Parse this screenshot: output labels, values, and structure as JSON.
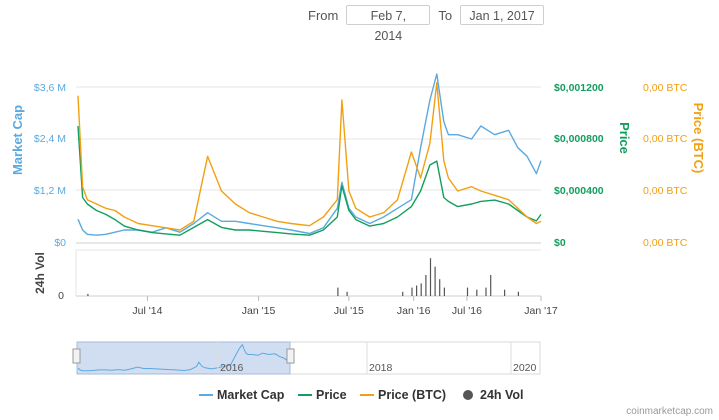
{
  "range": {
    "from_label": "From",
    "from_value": "Feb 7, 2014",
    "to_label": "To",
    "to_value": "Jan 1, 2017"
  },
  "credit": "coinmarketcap.com",
  "colors": {
    "market_cap": "#5aa9e0",
    "price": "#129e5e",
    "price_btc": "#f2a013",
    "vol": "#555555",
    "navigator_fill": "#c9d7ee"
  },
  "chart_data": {
    "type": "line",
    "x_ticks": [
      "Jul '14",
      "Jan '15",
      "Jul '15",
      "Jan '16",
      "Jul '16",
      "Jan '17"
    ],
    "y_axes": {
      "market_cap": {
        "label": "Market Cap",
        "ticks": [
          "$0",
          "$1,2 M",
          "$2,4 M",
          "$3,6 M"
        ],
        "range": [
          0,
          3.6
        ]
      },
      "price": {
        "label": "Price",
        "ticks": [
          "$0",
          "$0,000400",
          "$0,000800",
          "$0,001200"
        ],
        "range": [
          0,
          0.0012
        ]
      },
      "price_btc": {
        "label": "Price (BTC)",
        "ticks": [
          "0,00 BTC",
          "0,00 BTC",
          "0,00 BTC",
          "0,00 BTC"
        ]
      },
      "vol": {
        "label": "24h Vol",
        "ticks": [
          "0"
        ]
      }
    },
    "series": [
      {
        "name": "Market Cap",
        "x": [
          0,
          0.01,
          0.02,
          0.04,
          0.06,
          0.08,
          0.1,
          0.13,
          0.16,
          0.19,
          0.22,
          0.25,
          0.28,
          0.31,
          0.34,
          0.37,
          0.4,
          0.43,
          0.46,
          0.5,
          0.53,
          0.56,
          0.57,
          0.585,
          0.6,
          0.63,
          0.66,
          0.69,
          0.72,
          0.74,
          0.76,
          0.775,
          0.79,
          0.8,
          0.82,
          0.85,
          0.87,
          0.9,
          0.93,
          0.95,
          0.97,
          0.99,
          1.0
        ],
        "values": [
          0.55,
          0.3,
          0.2,
          0.18,
          0.2,
          0.25,
          0.3,
          0.3,
          0.25,
          0.35,
          0.25,
          0.45,
          0.7,
          0.5,
          0.5,
          0.45,
          0.4,
          0.35,
          0.3,
          0.22,
          0.35,
          0.8,
          1.4,
          0.8,
          0.6,
          0.45,
          0.6,
          0.8,
          1.0,
          2.2,
          3.3,
          3.9,
          2.8,
          2.5,
          2.5,
          2.4,
          2.7,
          2.5,
          2.6,
          2.2,
          2.0,
          1.6,
          1.9
        ]
      },
      {
        "name": "Price",
        "x": [
          0,
          0.01,
          0.02,
          0.04,
          0.06,
          0.08,
          0.1,
          0.13,
          0.16,
          0.19,
          0.22,
          0.25,
          0.28,
          0.31,
          0.34,
          0.37,
          0.4,
          0.43,
          0.46,
          0.5,
          0.53,
          0.56,
          0.57,
          0.585,
          0.6,
          0.63,
          0.66,
          0.69,
          0.72,
          0.74,
          0.76,
          0.775,
          0.79,
          0.8,
          0.82,
          0.85,
          0.87,
          0.9,
          0.93,
          0.95,
          0.97,
          0.99,
          1.0
        ],
        "values": [
          0.0009,
          0.00035,
          0.0003,
          0.00025,
          0.00022,
          0.00018,
          0.00013,
          0.0001,
          8e-05,
          7e-05,
          6e-05,
          0.00012,
          0.00018,
          0.00012,
          0.0001,
          0.0001,
          9e-05,
          8e-05,
          7e-05,
          6e-05,
          0.0001,
          0.0002,
          0.00044,
          0.00025,
          0.00018,
          0.00013,
          0.00015,
          0.0002,
          0.00028,
          0.0004,
          0.0006,
          0.00063,
          0.00035,
          0.00032,
          0.00028,
          0.0003,
          0.00032,
          0.00033,
          0.0003,
          0.00025,
          0.0002,
          0.00017,
          0.00022
        ]
      },
      {
        "name": "Price (BTC)",
        "x": [
          0,
          0.01,
          0.02,
          0.04,
          0.06,
          0.08,
          0.1,
          0.13,
          0.16,
          0.19,
          0.22,
          0.25,
          0.28,
          0.31,
          0.34,
          0.37,
          0.4,
          0.43,
          0.46,
          0.5,
          0.53,
          0.56,
          0.57,
          0.585,
          0.6,
          0.63,
          0.66,
          0.69,
          0.72,
          0.74,
          0.76,
          0.775,
          0.79,
          0.8,
          0.82,
          0.85,
          0.87,
          0.9,
          0.93,
          0.95,
          0.97,
          0.99,
          1.0
        ],
        "values": [
          3.4,
          1.3,
          1.0,
          0.9,
          0.8,
          0.75,
          0.6,
          0.45,
          0.4,
          0.35,
          0.3,
          0.5,
          2.0,
          1.2,
          0.9,
          0.7,
          0.6,
          0.5,
          0.45,
          0.4,
          0.6,
          1.0,
          3.3,
          1.2,
          0.8,
          0.6,
          0.7,
          1.0,
          2.1,
          1.5,
          2.3,
          3.7,
          1.9,
          1.5,
          1.2,
          1.3,
          1.2,
          1.1,
          1.0,
          0.8,
          0.6,
          0.45,
          0.5
        ]
      },
      {
        "name": "24h Vol",
        "x": [
          0.02,
          0.56,
          0.58,
          0.7,
          0.72,
          0.73,
          0.74,
          0.75,
          0.76,
          0.77,
          0.78,
          0.79,
          0.84,
          0.86,
          0.88,
          0.89,
          0.92,
          0.95
        ],
        "values": [
          0.05,
          0.2,
          0.1,
          0.1,
          0.2,
          0.25,
          0.3,
          0.5,
          0.9,
          0.7,
          0.4,
          0.2,
          0.2,
          0.15,
          0.2,
          0.5,
          0.15,
          0.1
        ]
      }
    ],
    "navigator": {
      "ticks": [
        "2016",
        "2018",
        "2020"
      ],
      "selection": [
        0.0,
        0.46
      ]
    }
  }
}
